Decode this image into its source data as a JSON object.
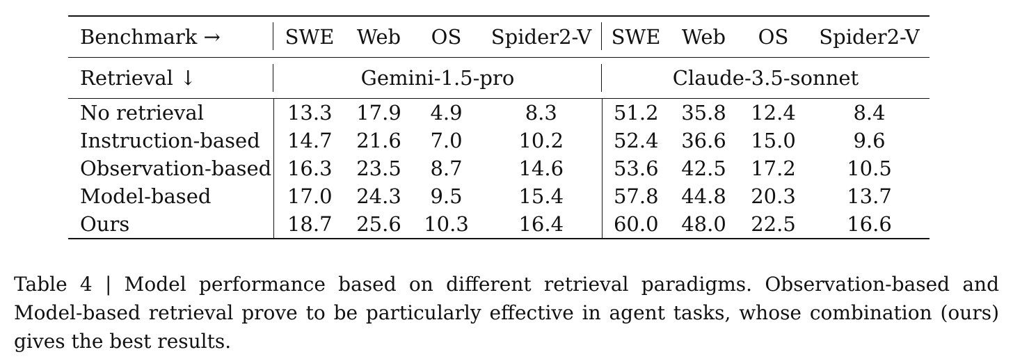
{
  "table": {
    "header": {
      "benchmark_label": "Benchmark →",
      "columns": [
        "SWE",
        "Web",
        "OS",
        "Spider2-V",
        "SWE",
        "Web",
        "OS",
        "Spider2-V"
      ]
    },
    "group_row": {
      "retrieval_label": "Retrieval ↓",
      "groups": [
        "Gemini-1.5-pro",
        "Claude-3.5-sonnet"
      ]
    },
    "rows": [
      {
        "label": "No retrieval",
        "values": [
          "13.3",
          "17.9",
          "4.9",
          "8.3",
          "51.2",
          "35.8",
          "12.4",
          "8.4"
        ]
      },
      {
        "label": "Instruction-based",
        "values": [
          "14.7",
          "21.6",
          "7.0",
          "10.2",
          "52.4",
          "36.6",
          "15.0",
          "9.6"
        ]
      },
      {
        "label": "Observation-based",
        "values": [
          "16.3",
          "23.5",
          "8.7",
          "14.6",
          "53.6",
          "42.5",
          "17.2",
          "10.5"
        ]
      },
      {
        "label": "Model-based",
        "values": [
          "17.0",
          "24.3",
          "9.5",
          "15.4",
          "57.8",
          "44.8",
          "20.3",
          "13.7"
        ]
      },
      {
        "label": "Ours",
        "values": [
          "18.7",
          "25.6",
          "10.3",
          "16.4",
          "60.0",
          "48.0",
          "22.5",
          "16.6"
        ]
      }
    ]
  },
  "caption": "Table 4 | Model performance based on different retrieval paradigms. Observation-based and Model-based retrieval prove to be particularly effective in agent tasks, whose combination (ours) gives the best results."
}
